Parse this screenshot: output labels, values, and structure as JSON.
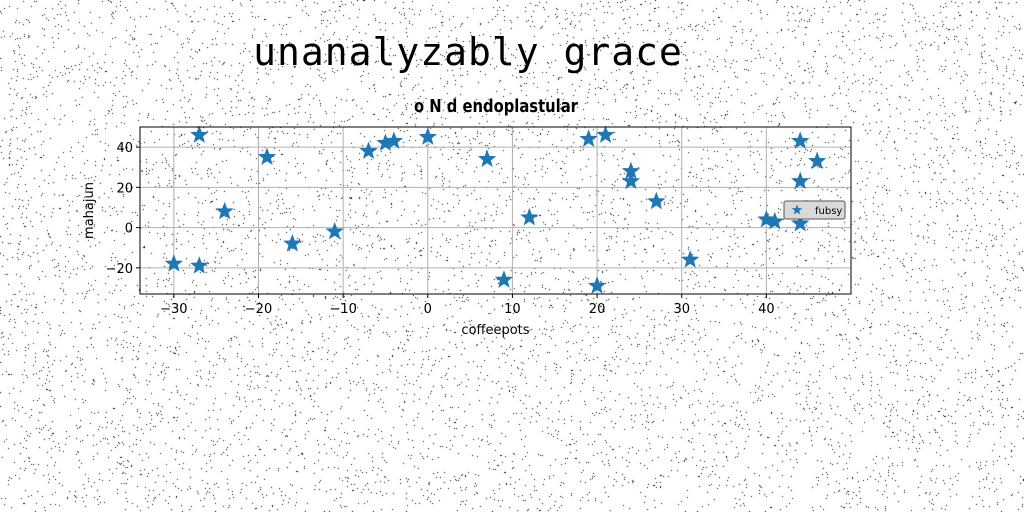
{
  "figure": {
    "suptitle": "unanalyzably grace"
  },
  "chart_data": {
    "type": "scatter",
    "title": "o N d endoplastular",
    "xlabel": "coffeepots",
    "ylabel": "mahajun",
    "xlim": [
      -34,
      50
    ],
    "ylim": [
      -33,
      50
    ],
    "xticks": [
      -30,
      -20,
      -10,
      0,
      10,
      20,
      30,
      40
    ],
    "yticks": [
      -20,
      0,
      20,
      40
    ],
    "grid": true,
    "legend": "center-right",
    "marker": "star",
    "series": [
      {
        "name": "fubsy",
        "color": "#1f77b4",
        "points": [
          [
            -30,
            -18
          ],
          [
            -27,
            46
          ],
          [
            -27,
            -19
          ],
          [
            -24,
            8
          ],
          [
            -19,
            35
          ],
          [
            -16,
            -8
          ],
          [
            -11,
            -2
          ],
          [
            -7,
            38
          ],
          [
            -5,
            42
          ],
          [
            -4,
            43
          ],
          [
            0,
            45
          ],
          [
            7,
            34
          ],
          [
            9,
            -26
          ],
          [
            12,
            5
          ],
          [
            19,
            44
          ],
          [
            20,
            -29
          ],
          [
            21,
            46
          ],
          [
            24,
            28
          ],
          [
            24,
            23
          ],
          [
            27,
            13
          ],
          [
            31,
            -16
          ],
          [
            40,
            4
          ],
          [
            41,
            3
          ],
          [
            44,
            43
          ],
          [
            44,
            23
          ],
          [
            44,
            2
          ],
          [
            46,
            33
          ]
        ]
      }
    ]
  }
}
